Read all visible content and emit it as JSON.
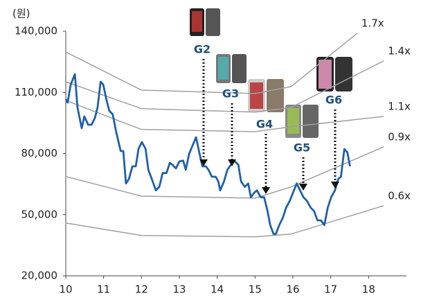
{
  "chart_data": {
    "type": "line",
    "y_label": "(원)",
    "xlim": [
      10,
      19
    ],
    "xticks": [
      10,
      11,
      12,
      13,
      14,
      15,
      16,
      17,
      18
    ],
    "ylim": [
      20000,
      140000
    ],
    "yticks": [
      {
        "value": 20000,
        "label": "20,000"
      },
      {
        "value": 50000,
        "label": "50,000"
      },
      {
        "value": 80000,
        "label": "80,000"
      },
      {
        "value": 110000,
        "label": "110,000"
      },
      {
        "value": 140000,
        "label": "140,000"
      }
    ],
    "series": [
      {
        "name": "1.7x",
        "color": "#a0a0a0",
        "x": [
          10,
          12,
          15,
          15.95,
          17.7
        ],
        "values": [
          129800,
          111100,
          109400,
          112800,
          139000
        ]
      },
      {
        "name": "1.4x",
        "color": "#a0a0a0",
        "x": [
          10,
          12,
          15,
          15.95,
          18.4
        ],
        "values": [
          115200,
          102000,
          100300,
          102600,
          125400
        ]
      },
      {
        "name": "1.1x",
        "color": "#a0a0a0",
        "x": [
          10,
          12,
          15,
          15.95,
          18.4
        ],
        "values": [
          106000,
          91800,
          90700,
          93100,
          98200
        ]
      },
      {
        "name": "0.9x",
        "color": "#a0a0a0",
        "x": [
          10,
          12,
          15,
          15.95,
          18.4
        ],
        "values": [
          68700,
          59100,
          58100,
          63600,
          83300
        ]
      },
      {
        "name": "0.6x",
        "color": "#a0a0a0",
        "x": [
          10,
          12,
          15,
          15.95,
          18.4
        ],
        "values": [
          45900,
          39800,
          39100,
          40500,
          54400
        ]
      },
      {
        "color": "#1f5fa8",
        "x": [
          10.0,
          10.05,
          10.13,
          10.24,
          10.31,
          10.42,
          10.49,
          10.59,
          10.68,
          10.77,
          10.84,
          10.92,
          10.99,
          11.08,
          11.15,
          11.24,
          11.33,
          11.45,
          11.52,
          11.59,
          11.67,
          11.76,
          11.85,
          11.92,
          12.01,
          12.11,
          12.18,
          12.27,
          12.38,
          12.47,
          12.56,
          12.66,
          12.75,
          12.82,
          12.91,
          13.0,
          13.1,
          13.17,
          13.26,
          13.35,
          13.44,
          13.52,
          13.61,
          13.7,
          13.77,
          13.86,
          13.96,
          14.03,
          14.08,
          14.18,
          14.27,
          14.36,
          14.45,
          14.56,
          14.63,
          14.73,
          14.82,
          14.89,
          14.98,
          15.05,
          15.15,
          15.24,
          15.33,
          15.4,
          15.49,
          15.55,
          15.64,
          15.73,
          15.82,
          15.92,
          15.99,
          16.1,
          16.19,
          16.28,
          16.37,
          16.47,
          16.56,
          16.65,
          16.74,
          16.83,
          16.92,
          17.01,
          17.11,
          17.2,
          17.27,
          17.36,
          17.44,
          17.51
        ],
        "values": [
          106700,
          105000,
          113800,
          118900,
          102600,
          92400,
          98200,
          94100,
          94100,
          97500,
          102600,
          115200,
          113800,
          106000,
          100900,
          99200,
          90700,
          81200,
          81200,
          65300,
          67600,
          73700,
          73700,
          82200,
          85600,
          82200,
          72000,
          67600,
          61900,
          63600,
          70400,
          70400,
          75400,
          74400,
          72700,
          76100,
          76500,
          72000,
          79900,
          83900,
          88000,
          81200,
          73700,
          73700,
          72000,
          68600,
          68600,
          66300,
          61900,
          66300,
          72000,
          74400,
          76500,
          74400,
          66300,
          63600,
          65300,
          58500,
          60800,
          61900,
          58500,
          58500,
          51700,
          44900,
          40500,
          40500,
          44900,
          48300,
          53400,
          56800,
          60200,
          65300,
          61900,
          58500,
          56800,
          53400,
          51700,
          47200,
          47200,
          44900,
          53400,
          58500,
          61900,
          67600,
          68600,
          82200,
          80500,
          73700
        ]
      }
    ],
    "annotations": [
      "G2",
      "G3",
      "G4",
      "G5",
      "G6"
    ]
  }
}
